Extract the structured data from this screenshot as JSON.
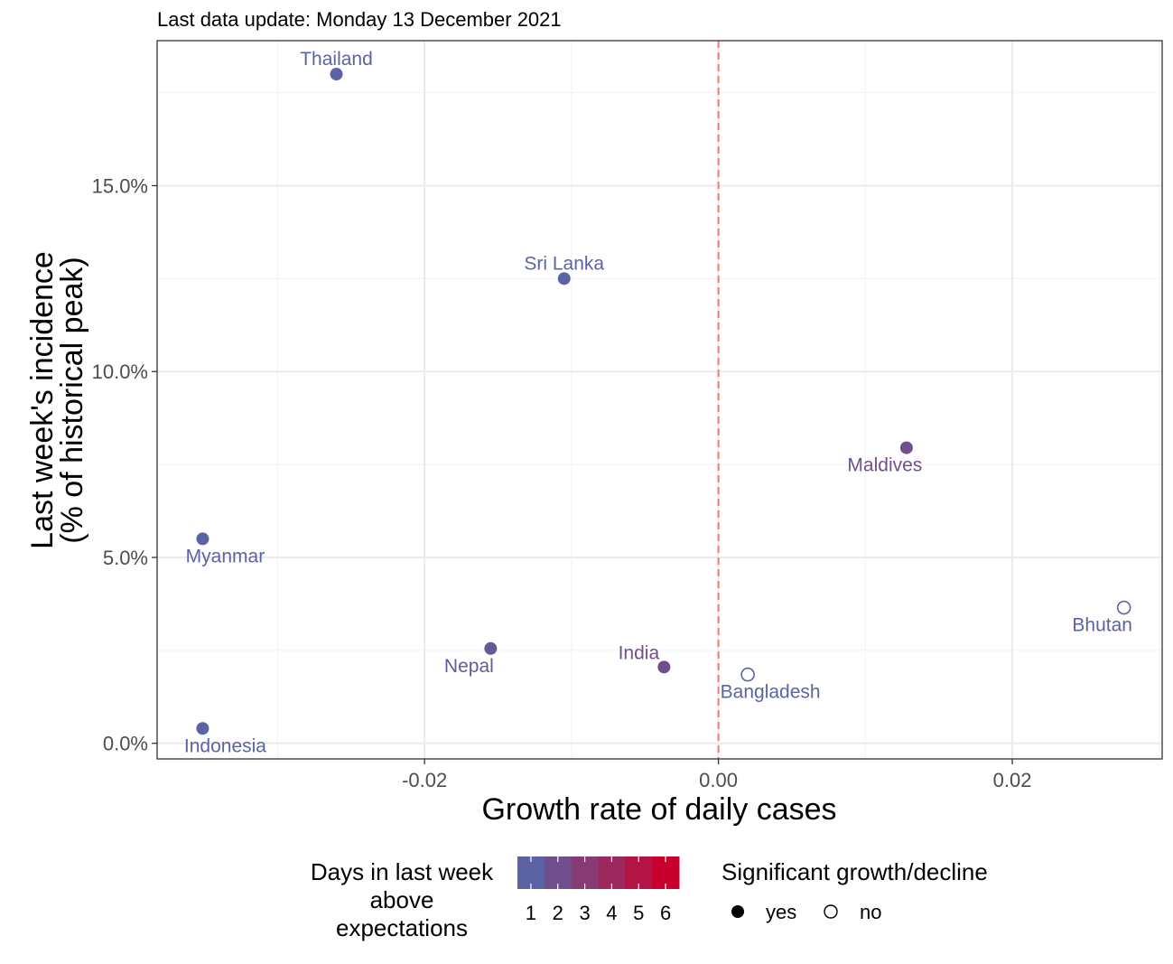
{
  "chart_data": {
    "type": "scatter",
    "title": "Last data update: Monday 13 December 2021",
    "xlabel": "Growth rate of daily cases",
    "ylabel_lines": [
      "Last week's incidence",
      "(% of historical peak)"
    ],
    "xlim": [
      -0.0382,
      0.0302
    ],
    "ylim": [
      -0.42,
      18.9
    ],
    "x_ticks": [
      {
        "value": -0.02,
        "label": "-0.02"
      },
      {
        "value": 0.0,
        "label": "0.00"
      },
      {
        "value": 0.02,
        "label": "0.02"
      }
    ],
    "x_minor": [
      -0.03,
      -0.01,
      0.01,
      0.03
    ],
    "y_ticks": [
      {
        "value": 0,
        "label": "0.0%"
      },
      {
        "value": 5,
        "label": "5.0%"
      },
      {
        "value": 10,
        "label": "10.0%"
      },
      {
        "value": 15,
        "label": "15.0%"
      }
    ],
    "y_minor": [
      2.5,
      7.5,
      12.5,
      17.5
    ],
    "grid": true,
    "reference_line": {
      "x": 0.0,
      "color": "#F8766D",
      "style": "dashed"
    },
    "points": [
      {
        "label": "Thailand",
        "x": -0.026,
        "y": 18.0,
        "days": 1,
        "significant": true,
        "label_pos": "above"
      },
      {
        "label": "Sri Lanka",
        "x": -0.0105,
        "y": 12.5,
        "days": 1,
        "significant": true,
        "label_pos": "above"
      },
      {
        "label": "Maldives",
        "x": 0.0128,
        "y": 7.95,
        "days": 2,
        "significant": true,
        "label_pos": "below-left"
      },
      {
        "label": "Myanmar",
        "x": -0.0351,
        "y": 5.5,
        "days": 1,
        "significant": true,
        "label_pos": "below-right"
      },
      {
        "label": "Bhutan",
        "x": 0.0276,
        "y": 3.65,
        "days": 1,
        "significant": false,
        "label_pos": "below-left"
      },
      {
        "label": "Nepal",
        "x": -0.0155,
        "y": 2.55,
        "days": 1.5,
        "significant": true,
        "label_pos": "below-left"
      },
      {
        "label": "India",
        "x": -0.0037,
        "y": 2.05,
        "days": 2,
        "significant": true,
        "label_pos": "above-left"
      },
      {
        "label": "Bangladesh",
        "x": 0.002,
        "y": 1.85,
        "days": 1,
        "significant": false,
        "label_pos": "below-right"
      },
      {
        "label": "Indonesia",
        "x": -0.0351,
        "y": 0.4,
        "days": 1,
        "significant": true,
        "label_pos": "below-right"
      }
    ],
    "legend": {
      "placement": "bottom",
      "color_title_lines": [
        "Days in last week",
        "above",
        "expectations"
      ],
      "color_scale": {
        "min": 1,
        "max": 6,
        "low": "#5B63A4",
        "high": "#C8002E"
      },
      "color_labels": [
        "1",
        "2",
        "3",
        "4",
        "5",
        "6"
      ],
      "shape_title": "Significant growth/decline",
      "shape_items": [
        {
          "label": "yes",
          "filled": true
        },
        {
          "label": "no",
          "filled": false
        }
      ]
    }
  }
}
